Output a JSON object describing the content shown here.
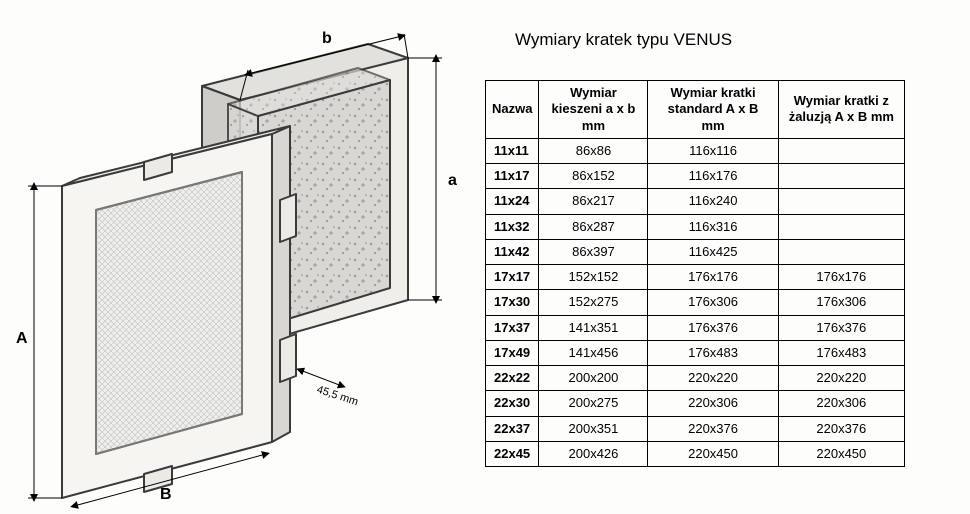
{
  "title": "Wymiary kratek typu VENUS",
  "diagram": {
    "labels": {
      "A": "A",
      "B": "B",
      "a": "a",
      "b": "b",
      "depth": "45,5 mm"
    },
    "colors": {
      "stroke": "#3a3a3a",
      "grille_fill": "#f6f5f3",
      "pocket_fill_light": "#eceae6",
      "pocket_fill_dark": "#b9b7b2",
      "mesh": "#bfbfbf"
    }
  },
  "table": {
    "columns": [
      "Nazwa",
      "Wymiar kieszeni a x b mm",
      "Wymiar kratki standard A x B mm",
      "Wymiar kratki z żaluzją A x B mm"
    ],
    "rows": [
      [
        "11x11",
        "86x86",
        "116x116",
        ""
      ],
      [
        "11x17",
        "86x152",
        "116x176",
        ""
      ],
      [
        "11x24",
        "86x217",
        "116x240",
        ""
      ],
      [
        "11x32",
        "86x287",
        "116x316",
        ""
      ],
      [
        "11x42",
        "86x397",
        "116x425",
        ""
      ],
      [
        "17x17",
        "152x152",
        "176x176",
        "176x176"
      ],
      [
        "17x30",
        "152x275",
        "176x306",
        "176x306"
      ],
      [
        "17x37",
        "141x351",
        "176x376",
        "176x376"
      ],
      [
        "17x49",
        "141x456",
        "176x483",
        "176x483"
      ],
      [
        "22x22",
        "200x200",
        "220x220",
        "220x220"
      ],
      [
        "22x30",
        "200x275",
        "220x306",
        "220x306"
      ],
      [
        "22x37",
        "200x351",
        "220x376",
        "220x376"
      ],
      [
        "22x45",
        "200x426",
        "220x450",
        "220x450"
      ]
    ]
  }
}
